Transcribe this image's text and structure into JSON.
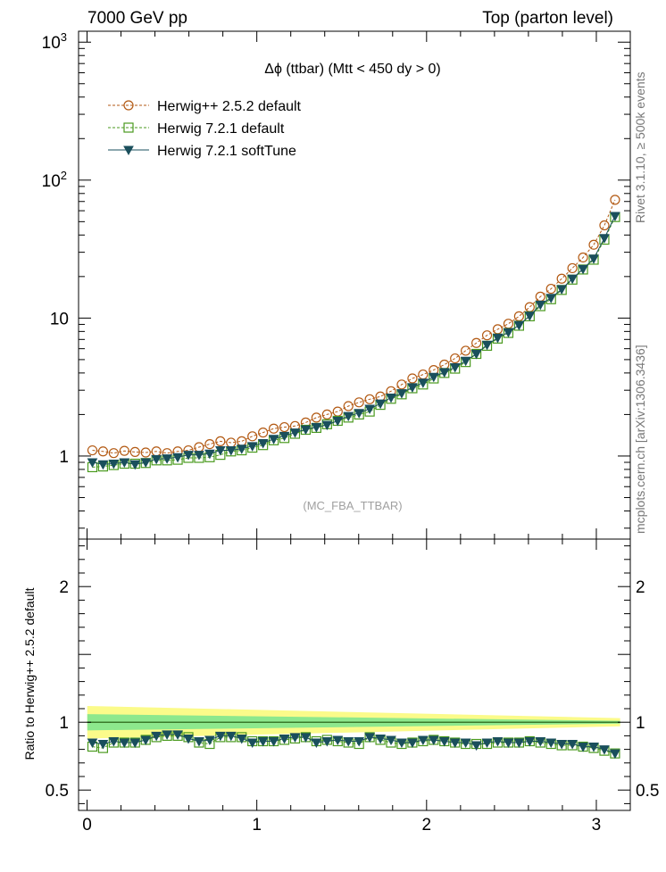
{
  "header": {
    "left": "7000 GeV pp",
    "right": "Top (parton level)"
  },
  "side": {
    "rivet": "Rivet 3.1.10, ≥ 500k events",
    "mcplots": "mcplots.cern.ch [arXiv:1306.3436]"
  },
  "chart_data": [
    {
      "type": "line",
      "title": "Δϕ (ttbar) (Mtt < 450 dy > 0)",
      "watermark": "(MC_FBA_TTBAR)",
      "yscale": "log",
      "xlim": [
        -0.05,
        3.2
      ],
      "ylim": [
        0.25,
        1200
      ],
      "ytick_labels": [
        {
          "value": 1,
          "label": "1"
        },
        {
          "value": 10,
          "label": "10"
        },
        {
          "value": 100,
          "label": "10",
          "sup": "2"
        },
        {
          "value": 1000,
          "label": "10",
          "sup": "3"
        }
      ],
      "legend_position": "top-left",
      "x": [
        0.0314,
        0.0942,
        0.157,
        0.2199,
        0.2827,
        0.3456,
        0.4084,
        0.4712,
        0.5341,
        0.5969,
        0.6597,
        0.7226,
        0.7854,
        0.8482,
        0.9111,
        0.9739,
        1.0367,
        1.0996,
        1.1624,
        1.2252,
        1.2881,
        1.3509,
        1.4137,
        1.4765,
        1.5394,
        1.6022,
        1.665,
        1.7279,
        1.7907,
        1.8535,
        1.9164,
        1.9792,
        2.042,
        2.1049,
        2.1677,
        2.2305,
        2.2934,
        2.3562,
        2.419,
        2.4819,
        2.5447,
        2.6075,
        2.6704,
        2.7332,
        2.796,
        2.8588,
        2.9217,
        2.9845,
        3.0473,
        3.1102
      ],
      "series": [
        {
          "name": "Herwig++ 2.5.2 default",
          "color": "#b35a14",
          "marker": "open-circle",
          "line": "dashed",
          "values": [
            1.1,
            1.08,
            1.05,
            1.09,
            1.07,
            1.06,
            1.08,
            1.05,
            1.08,
            1.1,
            1.16,
            1.22,
            1.28,
            1.25,
            1.28,
            1.39,
            1.48,
            1.58,
            1.62,
            1.65,
            1.75,
            1.9,
            2.0,
            2.1,
            2.3,
            2.45,
            2.58,
            2.7,
            2.95,
            3.3,
            3.65,
            3.9,
            4.2,
            4.6,
            5.1,
            5.8,
            6.6,
            7.5,
            8.3,
            9.1,
            10.3,
            12.0,
            14.3,
            16.3,
            19.3,
            23.0,
            27.5,
            34.0,
            47.0,
            72.0
          ]
        },
        {
          "name": "Herwig 7.2.1 default",
          "color": "#4a9a1e",
          "marker": "open-square",
          "line": "dashed",
          "values": [
            0.83,
            0.84,
            0.86,
            0.88,
            0.88,
            0.89,
            0.93,
            0.93,
            0.94,
            0.97,
            0.97,
            0.98,
            1.02,
            1.08,
            1.1,
            1.15,
            1.2,
            1.3,
            1.35,
            1.45,
            1.55,
            1.6,
            1.7,
            1.8,
            1.9,
            2.0,
            2.1,
            2.35,
            2.6,
            2.8,
            3.1,
            3.3,
            3.65,
            4.0,
            4.3,
            4.8,
            5.5,
            6.3,
            7.1,
            7.8,
            8.8,
            10.3,
            12.2,
            13.7,
            16.0,
            19.0,
            22.5,
            26.5,
            37.0,
            54.0
          ]
        },
        {
          "name": "Herwig 7.2.1 softTune",
          "color": "#1a4f5c",
          "marker": "filled-triangle-down",
          "line": "solid",
          "values": [
            0.9,
            0.87,
            0.88,
            0.9,
            0.87,
            0.9,
            0.95,
            0.96,
            0.98,
            1.02,
            1.02,
            1.04,
            1.1,
            1.1,
            1.13,
            1.18,
            1.24,
            1.33,
            1.4,
            1.48,
            1.56,
            1.62,
            1.68,
            1.8,
            1.95,
            2.05,
            2.2,
            2.4,
            2.65,
            2.85,
            3.15,
            3.4,
            3.75,
            4.05,
            4.4,
            4.9,
            5.5,
            6.4,
            7.2,
            7.9,
            8.9,
            10.4,
            12.5,
            14.0,
            16.2,
            19.3,
            22.7,
            27.0,
            38.0,
            55.0
          ]
        }
      ]
    },
    {
      "type": "line",
      "ylabel": "Ratio to Herwig++ 2.5.2 default",
      "xlim": [
        -0.05,
        3.2
      ],
      "ylim": [
        0.35,
        2.35
      ],
      "xticks": [
        0,
        1,
        2,
        3
      ],
      "xtick_labels": [
        "0",
        "1",
        "2",
        "3"
      ],
      "yticks": [
        0.5,
        1,
        2
      ],
      "ytick_labels": [
        "0.5",
        "1",
        "2"
      ],
      "band_yellow_halfwidth": [
        0.12,
        0.03
      ],
      "band_green_halfwidth": [
        0.06,
        0.01
      ],
      "series": [
        {
          "name": "Herwig 7.2.1 default",
          "color": "#4a9a1e",
          "marker": "open-square",
          "line": "dashed",
          "values": [
            0.82,
            0.81,
            0.85,
            0.85,
            0.85,
            0.87,
            0.89,
            0.9,
            0.9,
            0.89,
            0.85,
            0.84,
            0.89,
            0.89,
            0.89,
            0.86,
            0.86,
            0.86,
            0.87,
            0.88,
            0.89,
            0.86,
            0.87,
            0.86,
            0.85,
            0.84,
            0.89,
            0.87,
            0.85,
            0.84,
            0.85,
            0.86,
            0.87,
            0.86,
            0.85,
            0.84,
            0.84,
            0.84,
            0.85,
            0.85,
            0.85,
            0.86,
            0.85,
            0.84,
            0.83,
            0.83,
            0.82,
            0.81,
            0.79,
            0.77
          ]
        },
        {
          "name": "Herwig 7.2.1 softTune",
          "color": "#1a4f5c",
          "marker": "filled-triangle-down",
          "line": "solid",
          "values": [
            0.85,
            0.84,
            0.86,
            0.85,
            0.85,
            0.87,
            0.9,
            0.91,
            0.91,
            0.88,
            0.86,
            0.87,
            0.9,
            0.9,
            0.88,
            0.85,
            0.86,
            0.86,
            0.88,
            0.89,
            0.89,
            0.85,
            0.86,
            0.87,
            0.86,
            0.86,
            0.89,
            0.88,
            0.87,
            0.85,
            0.85,
            0.87,
            0.87,
            0.86,
            0.85,
            0.85,
            0.83,
            0.85,
            0.86,
            0.85,
            0.85,
            0.86,
            0.86,
            0.85,
            0.84,
            0.84,
            0.82,
            0.82,
            0.8,
            0.77
          ]
        }
      ]
    }
  ]
}
